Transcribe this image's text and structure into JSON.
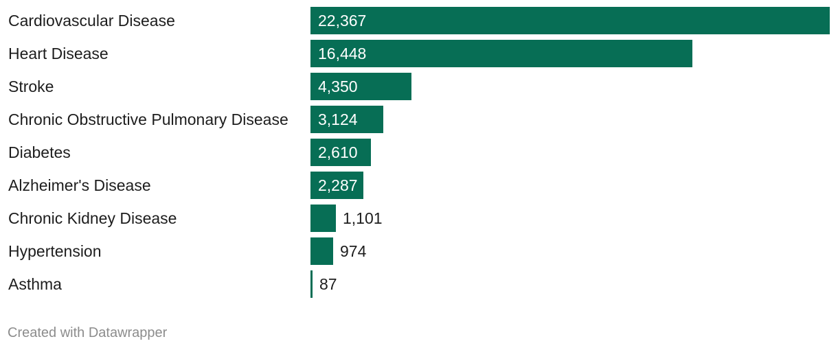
{
  "chart_data": {
    "type": "bar",
    "orientation": "horizontal",
    "categories": [
      "Cardiovascular Disease",
      "Heart Disease",
      "Stroke",
      "Chronic Obstructive Pulmonary Disease",
      "Diabetes",
      "Alzheimer's Disease",
      "Chronic Kidney Disease",
      "Hypertension",
      "Asthma"
    ],
    "values": [
      22367,
      16448,
      4350,
      3124,
      2610,
      2287,
      1101,
      974,
      87
    ],
    "value_labels": [
      "22,367",
      "16,448",
      "4,350",
      "3,124",
      "2,610",
      "2,287",
      "1,101",
      "974",
      "87"
    ],
    "xlim": [
      0,
      22367
    ],
    "grid": false,
    "legend": "none",
    "bar_color": "#076e55"
  },
  "footer": {
    "credit": "Created with Datawrapper"
  }
}
